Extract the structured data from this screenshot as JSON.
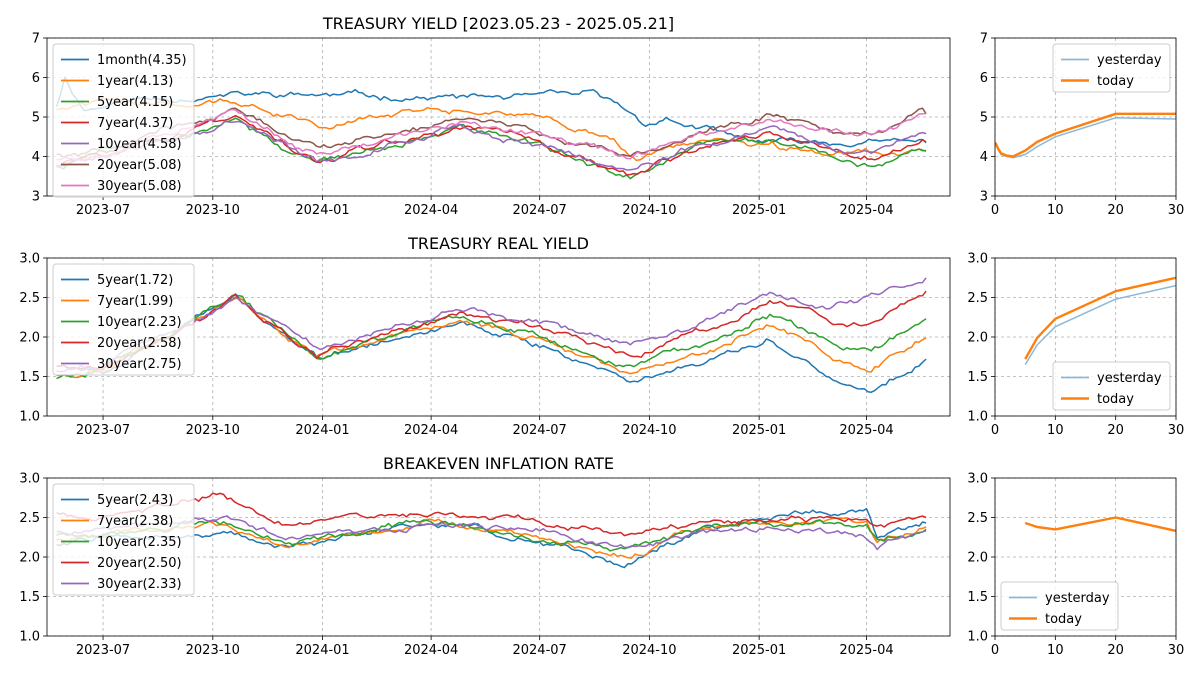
{
  "chart_data": [
    {
      "type": "line",
      "title": "TREASURY YIELD [2023.05.23 - 2025.05.21]",
      "xlabel": "",
      "ylabel": "",
      "ylim": [
        3,
        7
      ],
      "yticks": [
        "3",
        "4",
        "5",
        "6",
        "7"
      ],
      "xrange": [
        "2023-05-23",
        "2025-05-21"
      ],
      "xticks": [
        "2023-07",
        "2023-10",
        "2024-01",
        "2024-04",
        "2024-07",
        "2024-10",
        "2025-01",
        "2025-04"
      ],
      "grid": true,
      "legend": "upper-left",
      "series": [
        {
          "name": "1month(4.35)",
          "color": "#1f77b4",
          "x": [
            "2023-05-23",
            "2023-05-30",
            "2023-06-15",
            "2023-08-01",
            "2023-10-01",
            "2024-01-01",
            "2024-04-01",
            "2024-07-01",
            "2024-08-15",
            "2024-09-10",
            "2024-09-25",
            "2024-10-15",
            "2024-11-15",
            "2024-12-20",
            "2025-01-15",
            "2025-03-01",
            "2025-05-21"
          ],
          "y": [
            5.3,
            6.0,
            5.2,
            5.45,
            5.55,
            5.55,
            5.5,
            5.5,
            5.55,
            5.2,
            4.85,
            4.95,
            4.7,
            4.4,
            4.35,
            4.35,
            4.35
          ]
        },
        {
          "name": "1year(4.13)",
          "color": "#ff7f0e",
          "x": [
            "2023-05-23",
            "2023-07-01",
            "2023-10-01",
            "2023-11-15",
            "2024-01-01",
            "2024-04-01",
            "2024-07-01",
            "2024-09-01",
            "2024-09-20",
            "2024-10-15",
            "2024-12-01",
            "2025-01-15",
            "2025-03-01",
            "2025-05-21"
          ],
          "y": [
            5.2,
            5.4,
            5.45,
            5.2,
            4.8,
            5.2,
            5.05,
            4.4,
            3.95,
            4.2,
            4.35,
            4.2,
            4.05,
            4.13
          ]
        },
        {
          "name": "5year(4.15)",
          "color": "#2ca02c",
          "x": [
            "2023-05-23",
            "2023-07-01",
            "2023-10-20",
            "2023-12-27",
            "2024-04-25",
            "2024-07-01",
            "2024-09-15",
            "2024-11-15",
            "2025-01-10",
            "2025-03-01",
            "2025-04-05",
            "2025-05-21"
          ],
          "y": [
            3.75,
            4.15,
            4.95,
            3.85,
            4.7,
            4.3,
            3.45,
            4.3,
            4.45,
            4.05,
            3.8,
            4.15
          ]
        },
        {
          "name": "7year(4.37)",
          "color": "#d62728",
          "x": [
            "2023-05-23",
            "2023-07-01",
            "2023-10-20",
            "2023-12-27",
            "2024-04-25",
            "2024-07-01",
            "2024-09-15",
            "2024-11-15",
            "2025-01-10",
            "2025-03-01",
            "2025-04-05",
            "2025-05-21"
          ],
          "y": [
            3.8,
            4.05,
            5.0,
            3.9,
            4.75,
            4.35,
            3.55,
            4.35,
            4.6,
            4.2,
            4.0,
            4.37
          ]
        },
        {
          "name": "10year(4.58)",
          "color": "#9467bd",
          "x": [
            "2023-05-23",
            "2023-07-01",
            "2023-10-20",
            "2023-12-27",
            "2024-04-25",
            "2024-07-01",
            "2024-09-15",
            "2024-11-15",
            "2025-01-10",
            "2025-03-01",
            "2025-04-05",
            "2025-05-21"
          ],
          "y": [
            3.75,
            3.95,
            4.95,
            3.85,
            4.7,
            4.35,
            3.65,
            4.4,
            4.75,
            4.25,
            4.05,
            4.58
          ]
        },
        {
          "name": "20year(5.08)",
          "color": "#8c564b",
          "x": [
            "2023-05-23",
            "2023-07-01",
            "2023-10-20",
            "2023-12-27",
            "2024-04-25",
            "2024-07-01",
            "2024-09-15",
            "2024-11-15",
            "2025-01-10",
            "2025-03-01",
            "2025-04-05",
            "2025-05-21"
          ],
          "y": [
            4.1,
            4.1,
            5.25,
            4.15,
            4.95,
            4.65,
            4.0,
            4.65,
            5.05,
            4.6,
            4.5,
            5.08
          ]
        },
        {
          "name": "30year(5.08)",
          "color": "#e377c2",
          "x": [
            "2023-05-23",
            "2023-07-01",
            "2023-10-20",
            "2023-12-27",
            "2024-04-25",
            "2024-07-01",
            "2024-09-15",
            "2024-11-15",
            "2025-01-10",
            "2025-03-01",
            "2025-04-05",
            "2025-05-21"
          ],
          "y": [
            3.95,
            4.0,
            5.1,
            4.0,
            4.8,
            4.55,
            4.0,
            4.6,
            4.95,
            4.65,
            4.55,
            5.08
          ]
        }
      ]
    },
    {
      "type": "line",
      "title": "",
      "ylim": [
        3,
        7
      ],
      "yticks": [
        "3",
        "4",
        "5",
        "6",
        "7"
      ],
      "xlim": [
        0,
        30
      ],
      "xticks": [
        "0",
        "10",
        "20",
        "30"
      ],
      "grid": true,
      "legend": "upper-right",
      "series": [
        {
          "name": "yesterday",
          "color": "#8bb8d8",
          "x": [
            0.08,
            0.5,
            1,
            2,
            3,
            5,
            7,
            10,
            20,
            30
          ],
          "y": [
            4.35,
            4.2,
            4.05,
            4.0,
            3.97,
            4.05,
            4.25,
            4.5,
            4.98,
            4.95
          ]
        },
        {
          "name": "today",
          "color": "#ff7f0e",
          "x": [
            0.08,
            0.5,
            1,
            2,
            3,
            5,
            7,
            10,
            20,
            30
          ],
          "y": [
            4.35,
            4.2,
            4.08,
            4.02,
            4.0,
            4.15,
            4.37,
            4.58,
            5.08,
            5.08
          ]
        }
      ]
    },
    {
      "type": "line",
      "title": "TREASURY REAL YIELD",
      "ylim": [
        1.0,
        3.0
      ],
      "yticks": [
        "1.0",
        "1.5",
        "2.0",
        "2.5",
        "3.0"
      ],
      "xrange": [
        "2023-05-23",
        "2025-05-21"
      ],
      "xticks": [
        "2023-07",
        "2023-10",
        "2024-01",
        "2024-04",
        "2024-07",
        "2024-10",
        "2025-01",
        "2025-04"
      ],
      "grid": true,
      "legend": "upper-left",
      "series": [
        {
          "name": "5year(1.72)",
          "color": "#1f77b4",
          "x": [
            "2023-05-23",
            "2023-07-01",
            "2023-10-20",
            "2023-12-27",
            "2024-04-25",
            "2024-07-01",
            "2024-09-15",
            "2024-11-15",
            "2025-01-10",
            "2025-03-01",
            "2025-04-05",
            "2025-05-21"
          ],
          "y": [
            1.65,
            1.6,
            2.5,
            1.75,
            2.2,
            1.9,
            1.45,
            1.7,
            2.0,
            1.5,
            1.3,
            1.72
          ]
        },
        {
          "name": "7year(1.99)",
          "color": "#ff7f0e",
          "x": [
            "2023-05-23",
            "2023-07-01",
            "2023-10-20",
            "2023-12-27",
            "2024-04-25",
            "2024-07-01",
            "2024-09-15",
            "2024-11-15",
            "2025-01-10",
            "2025-03-01",
            "2025-04-05",
            "2025-05-21"
          ],
          "y": [
            1.55,
            1.6,
            2.5,
            1.75,
            2.2,
            1.95,
            1.55,
            1.8,
            2.15,
            1.75,
            1.55,
            1.99
          ]
        },
        {
          "name": "10year(2.23)",
          "color": "#2ca02c",
          "x": [
            "2023-05-23",
            "2023-07-01",
            "2023-10-20",
            "2023-12-27",
            "2024-04-25",
            "2024-07-01",
            "2024-09-15",
            "2024-11-15",
            "2025-01-10",
            "2025-03-01",
            "2025-04-05",
            "2025-05-21"
          ],
          "y": [
            1.5,
            1.6,
            2.5,
            1.75,
            2.25,
            2.0,
            1.6,
            1.9,
            2.3,
            1.95,
            1.8,
            2.23
          ]
        },
        {
          "name": "20year(2.58)",
          "color": "#d62728",
          "x": [
            "2023-05-23",
            "2023-07-01",
            "2023-10-20",
            "2023-12-27",
            "2024-04-25",
            "2024-07-01",
            "2024-09-15",
            "2024-11-15",
            "2025-01-10",
            "2025-03-01",
            "2025-04-05",
            "2025-05-21"
          ],
          "y": [
            1.65,
            1.6,
            2.5,
            1.8,
            2.3,
            2.1,
            1.8,
            2.05,
            2.5,
            2.2,
            2.15,
            2.58
          ]
        },
        {
          "name": "30year(2.75)",
          "color": "#9467bd",
          "x": [
            "2023-05-23",
            "2023-07-01",
            "2023-10-20",
            "2023-12-27",
            "2024-04-25",
            "2024-07-01",
            "2024-09-15",
            "2024-11-15",
            "2025-01-10",
            "2025-03-01",
            "2025-04-05",
            "2025-05-21"
          ],
          "y": [
            1.6,
            1.6,
            2.55,
            1.85,
            2.4,
            2.2,
            1.9,
            2.2,
            2.55,
            2.35,
            2.5,
            2.75
          ]
        }
      ]
    },
    {
      "type": "line",
      "title": "",
      "ylim": [
        1.0,
        3.0
      ],
      "yticks": [
        "1.0",
        "1.5",
        "2.0",
        "2.5",
        "3.0"
      ],
      "xlim": [
        0,
        30
      ],
      "xticks": [
        "0",
        "10",
        "20",
        "30"
      ],
      "grid": true,
      "legend": "lower-right",
      "series": [
        {
          "name": "yesterday",
          "color": "#8bb8d8",
          "x": [
            5,
            7,
            10,
            20,
            30
          ],
          "y": [
            1.65,
            1.9,
            2.13,
            2.48,
            2.65
          ]
        },
        {
          "name": "today",
          "color": "#ff7f0e",
          "x": [
            5,
            7,
            10,
            20,
            30
          ],
          "y": [
            1.72,
            1.99,
            2.23,
            2.58,
            2.75
          ]
        }
      ]
    },
    {
      "type": "line",
      "title": "BREAKEVEN INFLATION RATE",
      "ylim": [
        1.0,
        3.0
      ],
      "yticks": [
        "1.0",
        "1.5",
        "2.0",
        "2.5",
        "3.0"
      ],
      "xrange": [
        "2023-05-23",
        "2025-05-21"
      ],
      "xticks": [
        "2023-07",
        "2023-10",
        "2024-01",
        "2024-04",
        "2024-07",
        "2024-10",
        "2025-01",
        "2025-04"
      ],
      "grid": true,
      "legend": "upper-left",
      "series": [
        {
          "name": "5year(2.43)",
          "color": "#1f77b4",
          "x": [
            "2023-05-23",
            "2023-07-01",
            "2023-10-10",
            "2023-12-01",
            "2024-04-01",
            "2024-07-01",
            "2024-09-10",
            "2024-11-15",
            "2025-02-15",
            "2025-04-01",
            "2025-04-10",
            "2025-05-21"
          ],
          "y": [
            2.15,
            2.25,
            2.3,
            2.1,
            2.45,
            2.2,
            1.9,
            2.35,
            2.6,
            2.6,
            2.2,
            2.43
          ]
        },
        {
          "name": "7year(2.38)",
          "color": "#ff7f0e",
          "x": [
            "2023-05-23",
            "2023-07-01",
            "2023-10-10",
            "2023-12-01",
            "2024-04-01",
            "2024-07-01",
            "2024-09-10",
            "2024-11-15",
            "2025-02-15",
            "2025-04-01",
            "2025-04-10",
            "2025-05-21"
          ],
          "y": [
            2.2,
            2.3,
            2.45,
            2.15,
            2.45,
            2.25,
            2.0,
            2.35,
            2.5,
            2.45,
            2.2,
            2.38
          ]
        },
        {
          "name": "10year(2.35)",
          "color": "#2ca02c",
          "x": [
            "2023-05-23",
            "2023-07-01",
            "2023-10-10",
            "2023-12-01",
            "2024-04-01",
            "2024-07-01",
            "2024-09-10",
            "2024-11-15",
            "2025-02-15",
            "2025-04-01",
            "2025-04-10",
            "2025-05-21"
          ],
          "y": [
            2.25,
            2.3,
            2.45,
            2.2,
            2.45,
            2.25,
            2.05,
            2.35,
            2.45,
            2.4,
            2.2,
            2.35
          ]
        },
        {
          "name": "20year(2.50)",
          "color": "#d62728",
          "x": [
            "2023-05-23",
            "2023-07-01",
            "2023-10-10",
            "2023-12-01",
            "2024-04-01",
            "2024-07-01",
            "2024-09-10",
            "2024-11-15",
            "2025-02-15",
            "2025-04-01",
            "2025-04-10",
            "2025-05-21"
          ],
          "y": [
            2.55,
            2.55,
            2.75,
            2.4,
            2.55,
            2.45,
            2.25,
            2.45,
            2.5,
            2.45,
            2.35,
            2.5
          ]
        },
        {
          "name": "30year(2.33)",
          "color": "#9467bd",
          "x": [
            "2023-05-23",
            "2023-07-01",
            "2023-10-10",
            "2023-12-01",
            "2024-04-01",
            "2024-07-01",
            "2024-09-10",
            "2024-11-15",
            "2025-02-15",
            "2025-04-01",
            "2025-04-10",
            "2025-05-21"
          ],
          "y": [
            2.3,
            2.35,
            2.5,
            2.25,
            2.4,
            2.3,
            2.1,
            2.3,
            2.35,
            2.25,
            2.15,
            2.33
          ]
        }
      ]
    },
    {
      "type": "line",
      "title": "",
      "ylim": [
        1.0,
        3.0
      ],
      "yticks": [
        "1.0",
        "1.5",
        "2.0",
        "2.5",
        "3.0"
      ],
      "xlim": [
        0,
        30
      ],
      "xticks": [
        "0",
        "10",
        "20",
        "30"
      ],
      "grid": true,
      "legend": "lower-left",
      "series": [
        {
          "name": "yesterday",
          "color": "#8bb8d8",
          "x": [
            5,
            7,
            10,
            20,
            30
          ],
          "y": [
            2.43,
            2.38,
            2.35,
            2.5,
            2.33
          ]
        },
        {
          "name": "today",
          "color": "#ff7f0e",
          "x": [
            5,
            7,
            10,
            20,
            30
          ],
          "y": [
            2.43,
            2.38,
            2.35,
            2.5,
            2.33
          ]
        }
      ]
    }
  ]
}
